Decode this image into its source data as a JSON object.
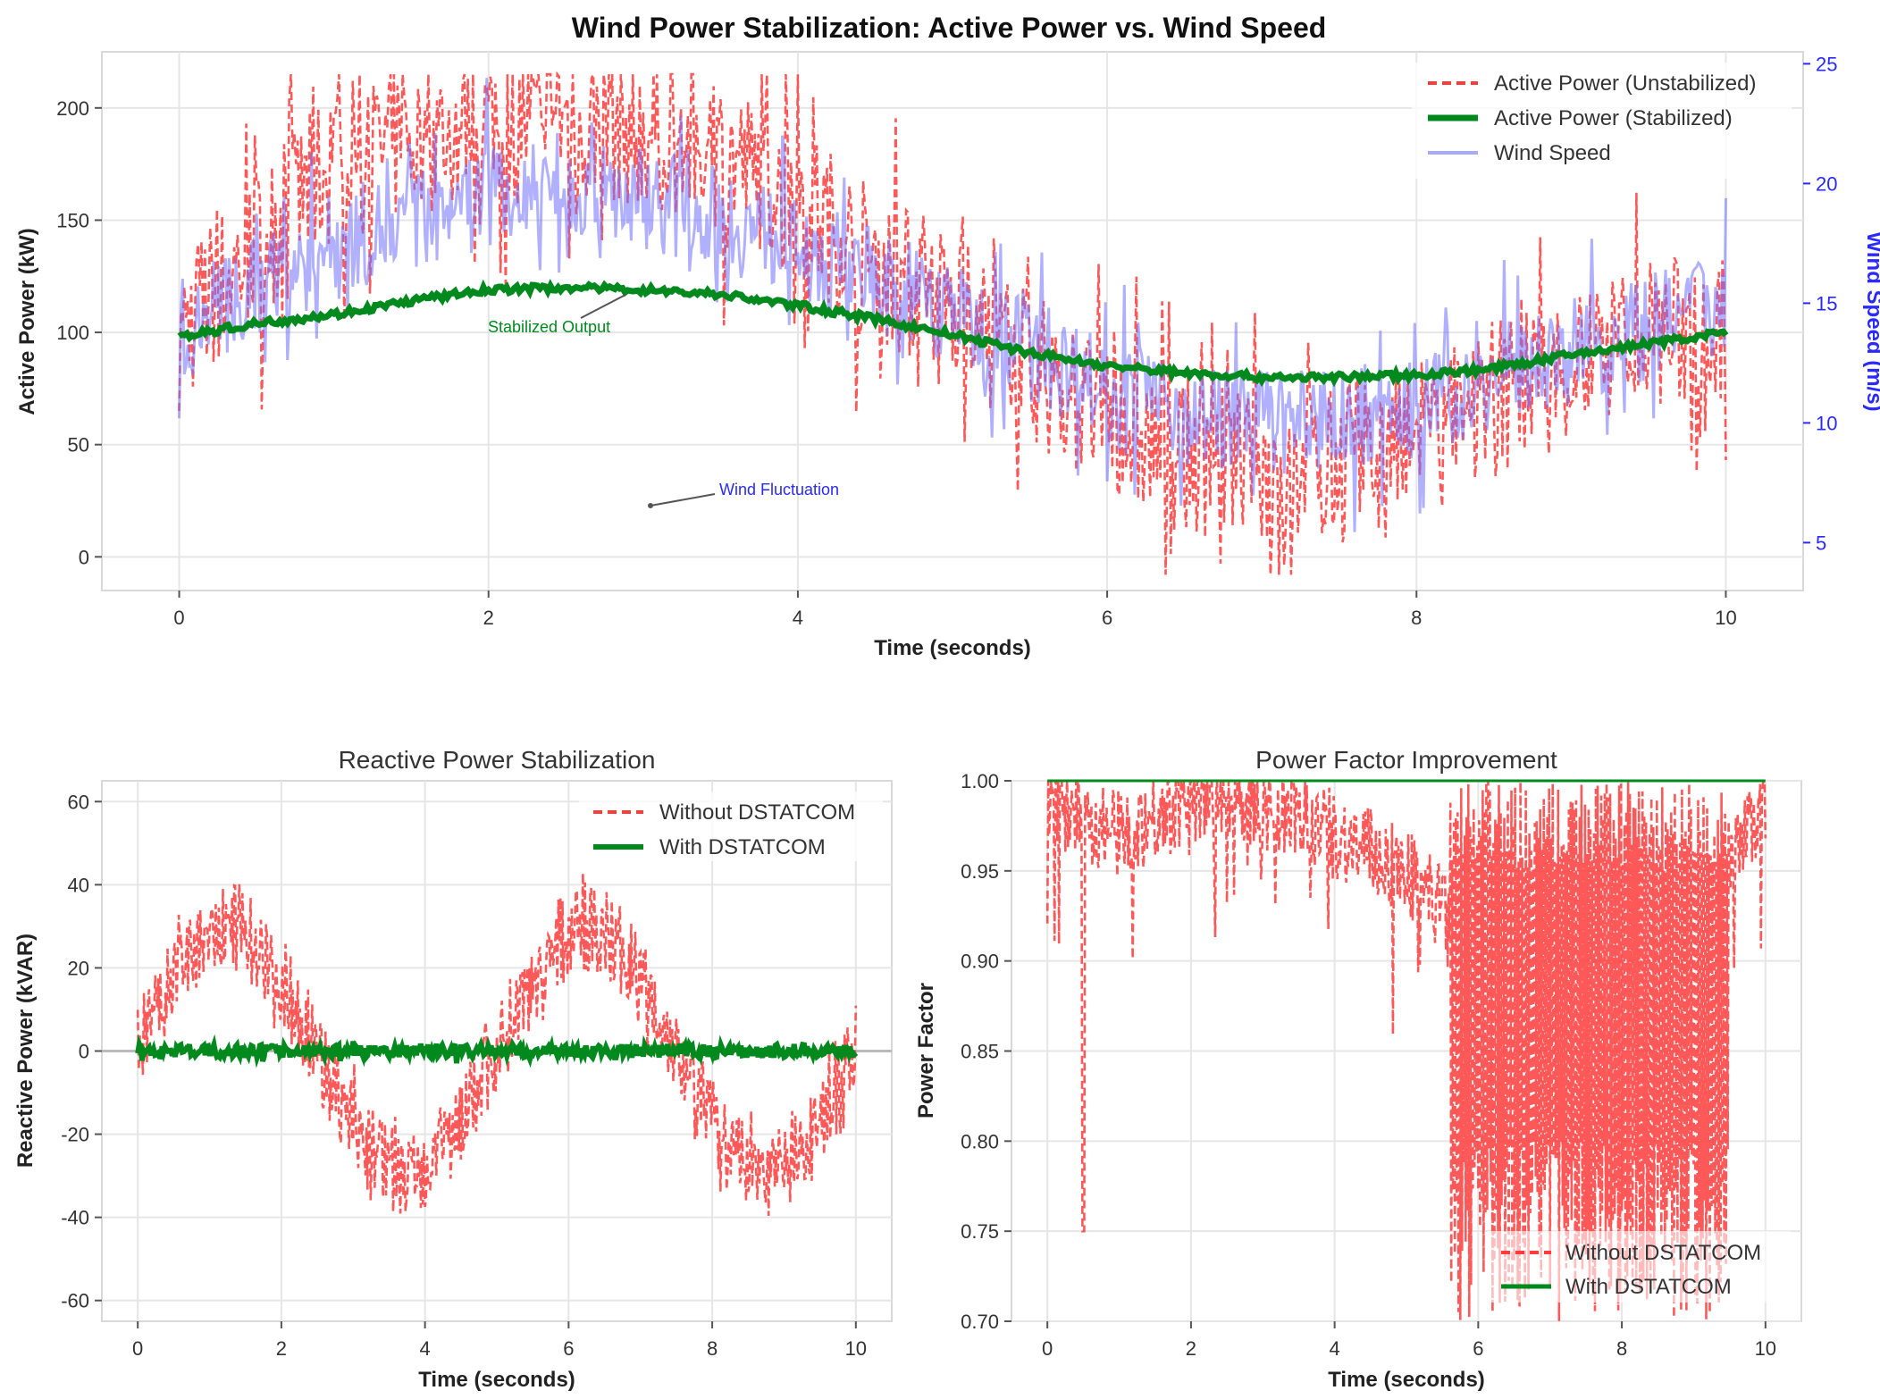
{
  "colors": {
    "unstabilized": "#ff3b3b",
    "stabilized": "#008a1e",
    "wind": "#7070ff",
    "wind_axis": "#2a2aff",
    "grid": "#e6e6e6",
    "frame": "#d9d9d9"
  },
  "chart_data": [
    {
      "type": "line",
      "id": "active",
      "title": "Wind Power Stabilization: Active Power vs. Wind Speed",
      "xlabel": "Time (seconds)",
      "ylabel": "Active Power (kW)",
      "y2label": "Wind Speed (m/s)",
      "xlim": [
        -0.5,
        10.5
      ],
      "ylim": [
        -15,
        225
      ],
      "y2lim": [
        3,
        25.5
      ],
      "xticks": [
        0,
        2,
        4,
        6,
        8,
        10
      ],
      "xtick_labels": [
        "0",
        "2",
        "4",
        "6",
        "8",
        "10"
      ],
      "yticks": [
        0,
        50,
        100,
        150,
        200
      ],
      "ytick_labels": [
        "0",
        "50",
        "100",
        "150",
        "200"
      ],
      "y2ticks": [
        5,
        10,
        15,
        20,
        25
      ],
      "y2tick_labels": [
        "5",
        "10",
        "15",
        "20",
        "25"
      ],
      "grid": true,
      "legend_position": "top-right",
      "series": [
        {
          "name": "Active Power (Unstabilized)",
          "style": "dashed",
          "color_key": "unstabilized",
          "axis": "left",
          "x": [
            0,
            0.5,
            1,
            1.5,
            2,
            2.5,
            3,
            3.5,
            4,
            4.5,
            5,
            5.5,
            6,
            6.5,
            7,
            7.5,
            8,
            8.5,
            9,
            9.5,
            10
          ],
          "values": [
            100,
            140,
            175,
            185,
            195,
            195,
            190,
            180,
            160,
            130,
            110,
            85,
            60,
            45,
            40,
            40,
            50,
            70,
            85,
            100,
            100
          ]
        },
        {
          "name": "Active Power (Stabilized)",
          "style": "solid",
          "color_key": "stabilized",
          "axis": "left",
          "x": [
            0,
            0.5,
            1,
            1.5,
            2,
            2.5,
            3,
            3.5,
            4,
            4.5,
            5,
            5.5,
            6,
            6.5,
            7,
            7.5,
            8,
            8.5,
            9,
            9.5,
            10
          ],
          "values": [
            98,
            104,
            108,
            114,
            119,
            120,
            119,
            117,
            112,
            106,
            99,
            91,
            85,
            82,
            80,
            80,
            81,
            84,
            90,
            95,
            100
          ]
        },
        {
          "name": "Wind Speed",
          "style": "solid",
          "color_key": "wind",
          "axis": "right",
          "x": [
            0,
            0.5,
            1,
            1.5,
            2,
            2.5,
            3,
            3.5,
            4,
            4.5,
            5,
            5.5,
            6,
            6.5,
            7,
            7.5,
            8,
            8.5,
            9,
            9.5,
            10
          ],
          "values": [
            14,
            15.5,
            17.5,
            18.5,
            19.5,
            20,
            19.5,
            18.5,
            17.5,
            16,
            14.5,
            13,
            11.5,
            10.5,
            10,
            10,
            10.5,
            12,
            13,
            14,
            15
          ]
        }
      ],
      "annotations": [
        {
          "text": "Stabilized Output",
          "color_key": "stabilized",
          "x": 2.5,
          "y": 98,
          "arrow_to": [
            3,
            120
          ]
        },
        {
          "text": "Wind Fluctuation",
          "color_key": "wind_axis",
          "x": 4,
          "y": 28,
          "arrow_to": [
            3.05,
            21
          ]
        }
      ]
    },
    {
      "type": "line",
      "id": "reactive",
      "title": "Reactive Power Stabilization",
      "xlabel": "Time (seconds)",
      "ylabel": "Reactive Power (kVAR)",
      "xlim": [
        -0.5,
        10.5
      ],
      "ylim": [
        -65,
        65
      ],
      "xticks": [
        0,
        2,
        4,
        6,
        8,
        10
      ],
      "xtick_labels": [
        "0",
        "2",
        "4",
        "6",
        "8",
        "10"
      ],
      "yticks": [
        -60,
        -40,
        -20,
        0,
        20,
        40,
        60
      ],
      "ytick_labels": [
        "-60",
        "-40",
        "-20",
        "0",
        "20",
        "40",
        "60"
      ],
      "grid": true,
      "legend_position": "top-right",
      "series": [
        {
          "name": "Without DSTATCOM",
          "style": "dashed",
          "color_key": "unstabilized",
          "x": [
            0,
            0.25,
            0.5,
            0.75,
            1,
            1.25,
            1.5,
            1.75,
            2,
            2.25,
            2.5,
            2.75,
            3,
            3.25,
            3.5,
            3.75,
            4,
            4.25,
            4.5,
            4.75,
            5,
            5.25,
            5.5,
            5.75,
            6,
            6.25,
            6.5,
            6.75,
            7,
            7.25,
            7.5,
            7.75,
            8,
            8.25,
            8.5,
            8.75,
            9,
            9.25,
            9.5,
            9.75,
            10
          ],
          "values": [
            0,
            9,
            17,
            24,
            28,
            30,
            28,
            24,
            17,
            9,
            0,
            -9,
            -17,
            -24,
            -28,
            -30,
            -28,
            -24,
            -17,
            -9,
            0,
            9,
            17,
            24,
            28,
            30,
            28,
            24,
            17,
            9,
            0,
            -9,
            -17,
            -24,
            -28,
            -30,
            -28,
            -24,
            -17,
            -9,
            0
          ]
        },
        {
          "name": "With DSTATCOM",
          "style": "solid",
          "color_key": "stabilized",
          "x": [
            0,
            10
          ],
          "values": [
            0,
            0
          ]
        }
      ]
    },
    {
      "type": "line",
      "id": "pf",
      "title": "Power Factor Improvement",
      "xlabel": "Time (seconds)",
      "ylabel": "Power Factor",
      "xlim": [
        -0.5,
        10.5
      ],
      "ylim": [
        0.7,
        1.0
      ],
      "xticks": [
        0,
        2,
        4,
        6,
        8,
        10
      ],
      "xtick_labels": [
        "0",
        "2",
        "4",
        "6",
        "8",
        "10"
      ],
      "yticks": [
        0.7,
        0.75,
        0.8,
        0.85,
        0.9,
        0.95,
        1.0
      ],
      "ytick_labels": [
        "0.70",
        "0.75",
        "0.80",
        "0.85",
        "0.90",
        "0.95",
        "1.00"
      ],
      "grid": true,
      "legend_position": "bottom-right",
      "series": [
        {
          "name": "Without DSTATCOM",
          "style": "dashed",
          "color_key": "unstabilized",
          "x": [
            0,
            0.5,
            1,
            1.5,
            2,
            2.5,
            3,
            3.5,
            4,
            4.5,
            5,
            5.5,
            6,
            6.5,
            7,
            7.5,
            8,
            8.5,
            9,
            9.5,
            10
          ],
          "values": [
            0.99,
            0.98,
            0.97,
            0.98,
            0.99,
            0.995,
            0.985,
            0.98,
            0.97,
            0.96,
            0.95,
            0.93,
            0.85,
            0.8,
            0.78,
            0.8,
            0.82,
            0.85,
            0.9,
            0.95,
            0.99
          ]
        },
        {
          "name": "With DSTATCOM",
          "style": "solid",
          "color_key": "stabilized",
          "x": [
            0,
            10
          ],
          "values": [
            1.0,
            1.0
          ]
        }
      ]
    }
  ]
}
